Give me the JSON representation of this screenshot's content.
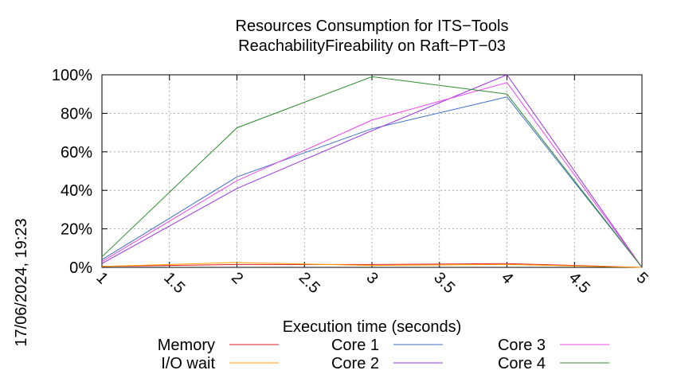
{
  "chart_data": {
    "type": "line",
    "title": "Resources Consumption for ITS−Tools",
    "subtitle": "ReachabilityFireability on Raft−PT−03",
    "xlabel": "Execution time (seconds)",
    "ylabel": "",
    "timestamp": "17/06/2024, 19:23",
    "xlim": [
      1,
      5
    ],
    "ylim": [
      0,
      100
    ],
    "x_ticks": [
      "1",
      "1.5",
      "2",
      "2.5",
      "3",
      "3.5",
      "4",
      "4.5",
      "5"
    ],
    "y_ticks": [
      "0%",
      "20%",
      "40%",
      "60%",
      "80%",
      "100%"
    ],
    "grid": true,
    "legend_position": "bottom",
    "series": [
      {
        "name": "Memory",
        "color": "#e41a1c",
        "x": [
          1,
          2,
          3,
          4,
          5
        ],
        "y": [
          0.5,
          1.5,
          1.5,
          2,
          0
        ]
      },
      {
        "name": "I/O wait",
        "color": "#ff9f00",
        "x": [
          1,
          2,
          3,
          4,
          5
        ],
        "y": [
          0.5,
          2.5,
          1,
          1.5,
          0
        ]
      },
      {
        "name": "Core 1",
        "color": "#3d6fc4",
        "x": [
          1,
          2,
          3,
          4,
          5
        ],
        "y": [
          4,
          47,
          72,
          88.5,
          0
        ]
      },
      {
        "name": "Core 2",
        "color": "#9b30e8",
        "x": [
          1,
          2,
          3,
          4,
          5
        ],
        "y": [
          2,
          41,
          71,
          100,
          0
        ]
      },
      {
        "name": "Core 3",
        "color": "#ee44ee",
        "x": [
          1,
          2,
          3,
          4,
          5
        ],
        "y": [
          3,
          45,
          76.5,
          96,
          0
        ]
      },
      {
        "name": "Core 4",
        "color": "#2e8b2e",
        "x": [
          1,
          2,
          3,
          4,
          5
        ],
        "y": [
          5.5,
          72.5,
          99,
          90,
          0
        ]
      }
    ]
  }
}
